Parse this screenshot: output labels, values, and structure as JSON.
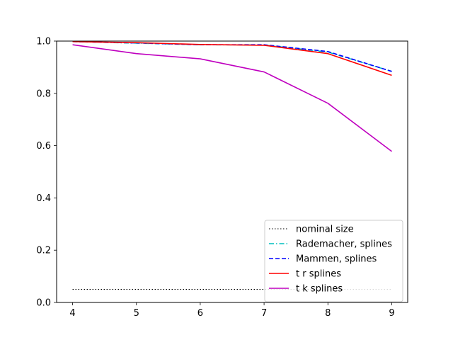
{
  "chart_data": {
    "type": "line",
    "title": "",
    "xlabel": "",
    "ylabel": "",
    "x": [
      4,
      5,
      6,
      7,
      8,
      9
    ],
    "xlim": [
      3.75,
      9.25
    ],
    "ylim": [
      0,
      1
    ],
    "xticks": [
      "4",
      "5",
      "6",
      "7",
      "8",
      "9"
    ],
    "yticks": [
      "0.0",
      "0.2",
      "0.4",
      "0.6",
      "0.8",
      "1.0"
    ],
    "grid": false,
    "legend_position": "lower-right",
    "series": [
      {
        "name": "nominal size",
        "values": [
          0.05,
          0.05,
          0.05,
          0.05,
          0.05,
          0.05
        ],
        "color": "#000000",
        "style": "dotted"
      },
      {
        "name": "Rademacher, splines",
        "values": [
          0.998,
          0.992,
          0.986,
          0.985,
          0.958,
          0.884
        ],
        "color": "#00bfbf",
        "style": "dashdot"
      },
      {
        "name": "Mammen, splines",
        "values": [
          0.998,
          0.993,
          0.986,
          0.986,
          0.96,
          0.884
        ],
        "color": "#0000ff",
        "style": "dashed"
      },
      {
        "name": "t r splines",
        "values": [
          0.998,
          0.994,
          0.987,
          0.984,
          0.952,
          0.869
        ],
        "color": "#ff0000",
        "style": "solid"
      },
      {
        "name": "t k splines",
        "values": [
          0.986,
          0.952,
          0.932,
          0.882,
          0.762,
          0.578
        ],
        "color": "#bf00bf",
        "style": "solid"
      }
    ]
  }
}
